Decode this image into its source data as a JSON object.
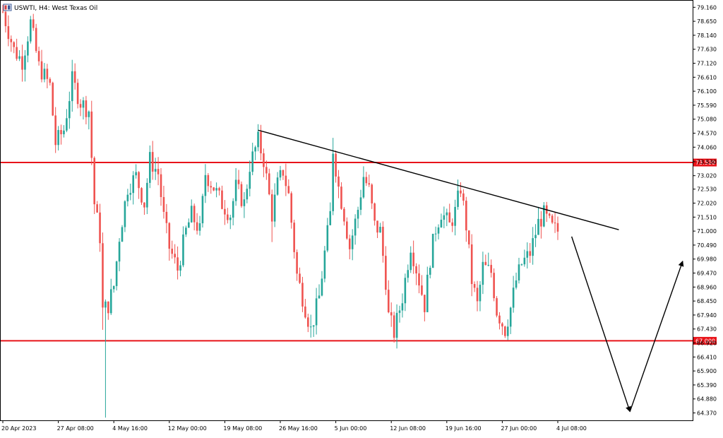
{
  "window": {
    "symbol_label": "USWTI, H4:  West Texas Oil"
  },
  "colors": {
    "background": "#ffffff",
    "bull_candle": "#26a69a",
    "bear_candle": "#ef5350",
    "level_line": "#e8141a",
    "level_tag_bg": "#e8141a",
    "level_tag_text": "#ffffff",
    "trendline": "#000000",
    "axis_text": "#000000"
  },
  "chart_data": {
    "type": "candlestick",
    "title": "USWTI, H4:  West Texas Oil",
    "ylim": [
      64.1,
      79.4
    ],
    "y_ticks": [
      "79.160",
      "78.650",
      "78.140",
      "77.630",
      "77.120",
      "76.610",
      "76.100",
      "75.590",
      "75.080",
      "74.570",
      "74.060",
      "73.530",
      "73.020",
      "72.530",
      "72.020",
      "71.510",
      "71.000",
      "70.490",
      "69.980",
      "69.470",
      "68.960",
      "68.450",
      "67.940",
      "67.430",
      "66.920",
      "66.410",
      "65.900",
      "65.390",
      "64.880",
      "64.370"
    ],
    "x_tick_labels": [
      "20 Apr 2023",
      "27 Apr 08:00",
      "4 May 16:00",
      "12 May 00:00",
      "19 May 08:00",
      "26 May 16:00",
      "5 Jun 00:00",
      "12 Jun 08:00",
      "19 Jun 16:00",
      "27 Jun 00:00",
      "4 Jul 08:00"
    ],
    "x_tick_index": [
      0,
      20,
      40,
      60,
      80,
      100,
      120,
      140,
      160,
      180,
      200
    ],
    "levels": [
      {
        "name": "resistance",
        "value": 73.5,
        "label": "73.500"
      },
      {
        "name": "support",
        "value": 67.0,
        "label": "67.000"
      }
    ],
    "trendline": {
      "from": {
        "bar": 92,
        "price": 74.68
      },
      "to": {
        "bar": 222,
        "price": 71.05
      }
    },
    "projection_path": [
      {
        "bar": 205,
        "price": 70.8
      },
      {
        "bar": 226,
        "price": 64.42
      },
      {
        "bar": 245,
        "price": 69.9
      }
    ],
    "anchors": [
      [
        0,
        79.0
      ],
      [
        4,
        77.6
      ],
      [
        7,
        77.2
      ],
      [
        10,
        78.6
      ],
      [
        13,
        77.0
      ],
      [
        17,
        76.3
      ],
      [
        19,
        74.2
      ],
      [
        22,
        74.7
      ],
      [
        25,
        76.5
      ],
      [
        28,
        75.7
      ],
      [
        31,
        75.4
      ],
      [
        33,
        72.0
      ],
      [
        35,
        70.8
      ],
      [
        36,
        68.1
      ],
      [
        38,
        68.3
      ],
      [
        40,
        69.0
      ],
      [
        42,
        70.8
      ],
      [
        45,
        72.6
      ],
      [
        48,
        73.0
      ],
      [
        51,
        72.0
      ],
      [
        53,
        73.6
      ],
      [
        56,
        73.1
      ],
      [
        58,
        71.5
      ],
      [
        60,
        70.4
      ],
      [
        63,
        69.6
      ],
      [
        66,
        71.0
      ],
      [
        68,
        71.6
      ],
      [
        71,
        71.0
      ],
      [
        73,
        73.1
      ],
      [
        76,
        72.6
      ],
      [
        79,
        72.0
      ],
      [
        82,
        71.6
      ],
      [
        84,
        72.6
      ],
      [
        87,
        72.0
      ],
      [
        89,
        73.4
      ],
      [
        92,
        74.3
      ],
      [
        94,
        73.6
      ],
      [
        97,
        71.6
      ],
      [
        99,
        72.7
      ],
      [
        101,
        73.2
      ],
      [
        103,
        72.3
      ],
      [
        106,
        69.4
      ],
      [
        109,
        68.2
      ],
      [
        111,
        67.4
      ],
      [
        114,
        68.6
      ],
      [
        116,
        70.2
      ],
      [
        118,
        71.6
      ],
      [
        119,
        74.0
      ],
      [
        121,
        72.6
      ],
      [
        123,
        71.6
      ],
      [
        125,
        70.4
      ],
      [
        128,
        71.8
      ],
      [
        130,
        73.0
      ],
      [
        132,
        72.5
      ],
      [
        134,
        71.2
      ],
      [
        136,
        71.0
      ],
      [
        138,
        69.2
      ],
      [
        139,
        67.9
      ],
      [
        141,
        67.3
      ],
      [
        144,
        68.6
      ],
      [
        147,
        70.5
      ],
      [
        150,
        69.2
      ],
      [
        152,
        68.3
      ],
      [
        154,
        70.0
      ],
      [
        156,
        71.1
      ],
      [
        158,
        71.7
      ],
      [
        161,
        71.2
      ],
      [
        163,
        71.7
      ],
      [
        165,
        72.6
      ],
      [
        167,
        71.2
      ],
      [
        169,
        69.2
      ],
      [
        171,
        68.3
      ],
      [
        173,
        69.7
      ],
      [
        176,
        69.5
      ],
      [
        178,
        68.1
      ],
      [
        181,
        67.4
      ],
      [
        183,
        68.2
      ],
      [
        185,
        69.2
      ],
      [
        187,
        69.8
      ],
      [
        190,
        70.2
      ],
      [
        193,
        71.3
      ],
      [
        195,
        71.6
      ],
      [
        198,
        71.1
      ],
      [
        200,
        71.0
      ]
    ]
  }
}
